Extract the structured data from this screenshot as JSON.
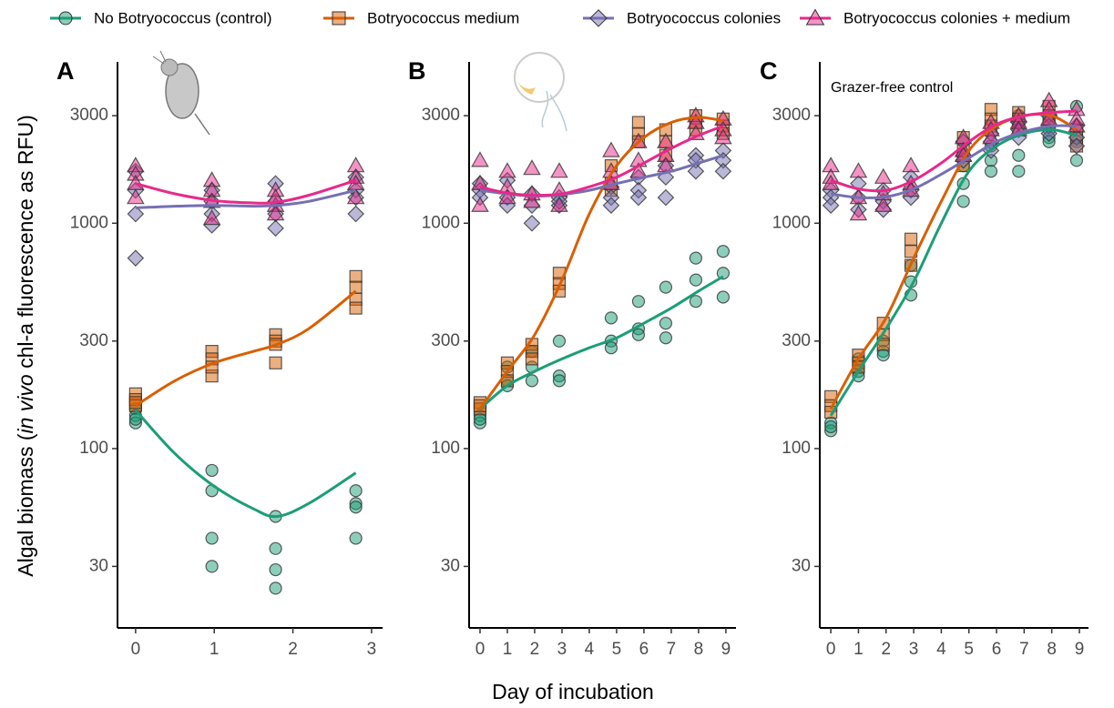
{
  "legend": [
    {
      "name": "No Botryococcus (control)",
      "color": "#1b9e77",
      "marker": "circle"
    },
    {
      "name": "Botryococcus medium",
      "color": "#d95f02",
      "marker": "square"
    },
    {
      "name": "Botryococcus colonies",
      "color": "#7570b3",
      "marker": "diamond"
    },
    {
      "name": "Botryococcus colonies + medium",
      "color": "#e7298a",
      "marker": "triangle"
    }
  ],
  "x_label": "Day of incubation",
  "y_label": [
    "Algal biomass (",
    "in vivo",
    " chl-a fluorescence as RFU)"
  ],
  "chart_data": [
    {
      "type": "scatter",
      "panel": "A",
      "log_y": true,
      "grid": false,
      "xlim": [
        -0.23,
        3.14
      ],
      "ylim": [
        16,
        5200
      ],
      "xticks": [
        0,
        1,
        2,
        3
      ],
      "yticks": [
        30,
        100,
        300,
        1000,
        3000
      ],
      "series": [
        {
          "x": [
            0,
            0,
            0,
            0,
            0.97,
            0.97,
            0.97,
            0.97,
            1.78,
            1.78,
            1.78,
            1.78,
            2.8,
            2.8,
            2.8,
            2.8
          ],
          "values": [
            150,
            140,
            130,
            135,
            80,
            65,
            40,
            30,
            50,
            36,
            29,
            24,
            65,
            57,
            55,
            40
          ],
          "fit_x": [
            0,
            0.5,
            1,
            1.5,
            1.8,
            2.2,
            2.8
          ],
          "fit": [
            148,
            95,
            68,
            54,
            50,
            57,
            78
          ]
        },
        {
          "x": [
            0,
            0,
            0,
            0,
            0.97,
            0.97,
            0.97,
            0.97,
            1.78,
            1.78,
            1.78,
            1.78,
            2.8,
            2.8,
            2.8,
            2.8
          ],
          "values": [
            175,
            165,
            155,
            160,
            270,
            250,
            210,
            230,
            320,
            300,
            240,
            290,
            580,
            520,
            460,
            420
          ],
          "fit_x": [
            0,
            0.5,
            1,
            1.5,
            1.8,
            2.2,
            2.8
          ],
          "fit": [
            155,
            200,
            240,
            270,
            290,
            340,
            500
          ]
        },
        {
          "x": [
            0,
            0,
            0,
            0,
            0.97,
            0.97,
            0.97,
            0.97,
            1.78,
            1.78,
            1.78,
            1.78,
            2.8,
            2.8,
            2.8,
            2.8
          ],
          "values": [
            1700,
            1400,
            1100,
            700,
            1400,
            1250,
            1100,
            980,
            1500,
            1250,
            1100,
            950,
            1600,
            1400,
            1300,
            1100
          ],
          "fit_x": [
            0,
            0.5,
            1,
            1.5,
            1.8,
            2.2,
            2.8
          ],
          "fit": [
            1170,
            1190,
            1200,
            1190,
            1200,
            1250,
            1400
          ]
        },
        {
          "x": [
            0,
            0,
            0,
            0,
            0.97,
            0.97,
            0.97,
            0.97,
            1.78,
            1.78,
            1.78,
            1.78,
            2.8,
            2.8,
            2.8,
            2.8
          ],
          "values": [
            1800,
            1650,
            1500,
            1300,
            1550,
            1400,
            1250,
            1050,
            1400,
            1200,
            1100,
            1300,
            1800,
            1600,
            1500,
            1300
          ],
          "fit_x": [
            0,
            0.5,
            1,
            1.5,
            1.8,
            2.2,
            2.8
          ],
          "fit": [
            1500,
            1350,
            1260,
            1230,
            1240,
            1330,
            1550
          ]
        }
      ]
    },
    {
      "type": "scatter",
      "panel": "B",
      "log_y": true,
      "grid": false,
      "xlim": [
        -0.4,
        9.37
      ],
      "ylim": [
        16,
        5200
      ],
      "xticks": [
        0,
        1,
        2,
        3,
        4,
        5,
        6,
        7,
        8,
        9
      ],
      "yticks": [
        30,
        100,
        300,
        1000,
        3000
      ],
      "series": [
        {
          "x": [
            0,
            0,
            0,
            1,
            1,
            1,
            1.9,
            1.9,
            1.9,
            2.9,
            2.9,
            2.9,
            4.8,
            4.8,
            4.8,
            5.8,
            5.8,
            5.8,
            6.8,
            6.8,
            6.8,
            7.9,
            7.9,
            7.9,
            8.9,
            8.9,
            8.9
          ],
          "values": [
            140,
            130,
            135,
            230,
            200,
            190,
            270,
            230,
            200,
            300,
            210,
            200,
            380,
            300,
            280,
            450,
            340,
            320,
            520,
            360,
            310,
            700,
            560,
            450,
            750,
            600,
            470
          ],
          "fit_x": [
            0,
            1,
            2,
            3,
            4,
            5,
            6,
            7,
            8,
            8.9
          ],
          "fit": [
            150,
            190,
            220,
            250,
            280,
            310,
            360,
            420,
            500,
            580
          ]
        },
        {
          "x": [
            0,
            0,
            0,
            1,
            1,
            1,
            1.9,
            1.9,
            1.9,
            2.9,
            2.9,
            2.9,
            4.8,
            4.8,
            4.8,
            5.8,
            5.8,
            5.8,
            6.8,
            6.8,
            6.8,
            7.9,
            7.9,
            7.9,
            8.9,
            8.9,
            8.9
          ],
          "values": [
            160,
            150,
            155,
            240,
            220,
            200,
            290,
            270,
            250,
            600,
            540,
            500,
            1800,
            1500,
            1400,
            2800,
            2500,
            2300,
            2600,
            2300,
            2000,
            3000,
            2800,
            2600,
            2900,
            2700,
            2500
          ],
          "fit_x": [
            0,
            1,
            2,
            3,
            4,
            5,
            6,
            7,
            8,
            8.9
          ],
          "fit": [
            150,
            220,
            320,
            560,
            1100,
            1800,
            2400,
            2800,
            2950,
            2850
          ]
        },
        {
          "x": [
            0,
            0,
            0,
            1,
            1,
            1,
            1.9,
            1.9,
            1.9,
            2.9,
            2.9,
            2.9,
            4.8,
            4.8,
            4.8,
            5.8,
            5.8,
            5.8,
            6.8,
            6.8,
            6.8,
            7.9,
            7.9,
            7.9,
            8.9,
            8.9,
            8.9
          ],
          "values": [
            1500,
            1400,
            1300,
            1550,
            1300,
            1200,
            1350,
            1200,
            1000,
            1300,
            1200,
            1250,
            1450,
            1300,
            1200,
            1600,
            1400,
            1300,
            1800,
            1600,
            1300,
            2000,
            1900,
            1700,
            2100,
            1900,
            1700
          ],
          "fit_x": [
            0,
            1,
            2,
            3,
            4,
            5,
            6,
            7,
            8,
            8.9
          ],
          "fit": [
            1400,
            1350,
            1320,
            1340,
            1400,
            1500,
            1600,
            1700,
            1850,
            2000
          ]
        },
        {
          "x": [
            0,
            0,
            0,
            1,
            1,
            1,
            1.9,
            1.9,
            1.9,
            2.9,
            2.9,
            2.9,
            4.8,
            4.8,
            4.8,
            5.8,
            5.8,
            5.8,
            6.8,
            6.8,
            6.8,
            7.9,
            7.9,
            7.9,
            8.9,
            8.9,
            8.9
          ],
          "values": [
            1900,
            1500,
            1200,
            1700,
            1450,
            1300,
            1750,
            1350,
            1250,
            1700,
            1400,
            1200,
            2100,
            1700,
            1500,
            2300,
            1900,
            1700,
            2300,
            2000,
            1800,
            3000,
            2800,
            2500,
            2900,
            2600,
            2400
          ],
          "fit_x": [
            0,
            1,
            2,
            3,
            4,
            5,
            6,
            7,
            8,
            8.9
          ],
          "fit": [
            1450,
            1360,
            1330,
            1350,
            1450,
            1600,
            1850,
            2150,
            2450,
            2700
          ]
        }
      ]
    },
    {
      "type": "scatter",
      "panel": "C",
      "annotation": "Grazer-free control",
      "log_y": true,
      "grid": false,
      "xlim": [
        -0.4,
        9.33
      ],
      "ylim": [
        16,
        5200
      ],
      "xticks": [
        0,
        1,
        2,
        3,
        4,
        5,
        6,
        7,
        8,
        9
      ],
      "yticks": [
        30,
        100,
        300,
        1000,
        3000
      ],
      "series": [
        {
          "x": [
            0,
            0,
            0,
            1,
            1,
            1,
            1.9,
            1.9,
            1.9,
            2.9,
            2.9,
            2.9,
            4.8,
            4.8,
            4.8,
            5.8,
            5.8,
            5.8,
            6.8,
            6.8,
            6.8,
            7.9,
            7.9,
            7.9,
            8.9,
            8.9,
            8.9
          ],
          "values": [
            130,
            120,
            125,
            250,
            220,
            210,
            300,
            270,
            260,
            650,
            550,
            480,
            1800,
            1500,
            1250,
            2200,
            1900,
            1700,
            3000,
            2000,
            1700,
            2600,
            2400,
            2300,
            3300,
            2300,
            1900
          ],
          "fit_x": [
            0,
            1,
            2,
            3,
            4,
            5,
            6,
            7,
            8,
            8.9
          ],
          "fit": [
            140,
            220,
            340,
            550,
            1000,
            1700,
            2200,
            2500,
            2600,
            2450
          ]
        },
        {
          "x": [
            0,
            0,
            0,
            1,
            1,
            1,
            1.9,
            1.9,
            1.9,
            2.9,
            2.9,
            2.9,
            4.8,
            4.8,
            4.8,
            5.8,
            5.8,
            5.8,
            6.8,
            6.8,
            6.8,
            7.9,
            7.9,
            7.9,
            8.9,
            8.9,
            8.9
          ],
          "values": [
            170,
            155,
            145,
            260,
            240,
            230,
            360,
            320,
            290,
            850,
            750,
            650,
            2400,
            2100,
            1800,
            3200,
            2900,
            2700,
            3100,
            2900,
            2600,
            3300,
            3000,
            2800,
            2600,
            2400,
            2200
          ],
          "fit_x": [
            0,
            1,
            2,
            3,
            4,
            5,
            6,
            7,
            8,
            8.9
          ],
          "fit": [
            150,
            250,
            380,
            700,
            1250,
            2100,
            2700,
            3000,
            3000,
            2600
          ]
        },
        {
          "x": [
            0,
            0,
            0,
            1,
            1,
            1,
            1.9,
            1.9,
            1.9,
            2.9,
            2.9,
            2.9,
            4.8,
            4.8,
            4.8,
            5.8,
            5.8,
            5.8,
            6.8,
            6.8,
            6.8,
            7.9,
            7.9,
            7.9,
            8.9,
            8.9,
            8.9
          ],
          "values": [
            1400,
            1300,
            1200,
            1500,
            1300,
            1150,
            1400,
            1250,
            1150,
            1600,
            1400,
            1300,
            2300,
            2000,
            1900,
            2500,
            2300,
            2100,
            2800,
            2600,
            2400,
            3000,
            2700,
            2500,
            2700,
            2400,
            2200
          ],
          "fit_x": [
            0,
            1,
            2,
            3,
            4,
            5,
            6,
            7,
            8,
            8.9
          ],
          "fit": [
            1350,
            1300,
            1310,
            1420,
            1650,
            1950,
            2300,
            2550,
            2700,
            2700
          ]
        },
        {
          "x": [
            0,
            0,
            0,
            1,
            1,
            1,
            1.9,
            1.9,
            1.9,
            2.9,
            2.9,
            2.9,
            4.8,
            4.8,
            4.8,
            5.8,
            5.8,
            5.8,
            6.8,
            6.8,
            6.8,
            7.9,
            7.9,
            7.9,
            8.9,
            8.9,
            8.9
          ],
          "values": [
            1800,
            1600,
            1500,
            1700,
            1300,
            1100,
            1600,
            1350,
            1200,
            1800,
            1500,
            1400,
            2400,
            2100,
            2000,
            2800,
            2600,
            2400,
            3000,
            2800,
            2600,
            3500,
            3200,
            2900,
            3200,
            2900,
            2700
          ],
          "fit_x": [
            0,
            1,
            2,
            3,
            4,
            5,
            6,
            7,
            8,
            8.9
          ],
          "fit": [
            1550,
            1420,
            1400,
            1550,
            1850,
            2300,
            2750,
            3000,
            3100,
            3150
          ]
        }
      ]
    }
  ]
}
